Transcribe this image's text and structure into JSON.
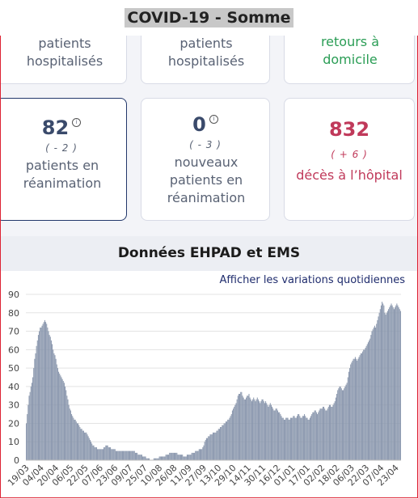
{
  "header": {
    "title": "COVID-19 - Somme"
  },
  "cards_top": [
    {
      "label": "patients hospitalisés"
    },
    {
      "label": "patients hospitalisés"
    },
    {
      "label": "retours à domicile"
    }
  ],
  "cards": [
    {
      "value": 82,
      "change": "( - 2 )",
      "label": "patients en réanimation"
    },
    {
      "value": 0,
      "change": "( - 3 )",
      "label": "nouveaux patients en réanimation"
    },
    {
      "value": 832,
      "change": "( + 6 )",
      "label": "décès à l’hôpital"
    }
  ],
  "section_title": "Données EHPAD et EMS",
  "link": "Afficher les variations quotidiennes",
  "chart_data": {
    "type": "bar",
    "color": "#8a97ad",
    "grid": true,
    "ylim": [
      0,
      90
    ],
    "yticks": [
      0,
      10,
      20,
      30,
      40,
      50,
      60,
      70,
      80,
      90
    ],
    "categories": [
      "19/03",
      null,
      null,
      null,
      null,
      null,
      null,
      null,
      null,
      null,
      null,
      null,
      null,
      null,
      null,
      null,
      "04/04",
      null,
      null,
      null,
      null,
      null,
      null,
      null,
      null,
      null,
      null,
      null,
      null,
      null,
      null,
      null,
      "20/04",
      null,
      null,
      null,
      null,
      null,
      null,
      null,
      null,
      null,
      null,
      null,
      null,
      null,
      null,
      null,
      "06/05",
      null,
      null,
      null,
      null,
      null,
      null,
      null,
      null,
      null,
      null,
      null,
      null,
      null,
      null,
      null,
      "22/05",
      null,
      null,
      null,
      null,
      null,
      null,
      null,
      null,
      null,
      null,
      null,
      null,
      null,
      null,
      null,
      "07/06",
      null,
      null,
      null,
      null,
      null,
      null,
      null,
      null,
      null,
      null,
      null,
      null,
      null,
      null,
      null,
      "23/06",
      null,
      null,
      null,
      null,
      null,
      null,
      null,
      null,
      null,
      null,
      null,
      null,
      null,
      null,
      null,
      "09/07",
      null,
      null,
      null,
      null,
      null,
      null,
      null,
      null,
      null,
      null,
      null,
      null,
      null,
      null,
      null,
      "25/07",
      null,
      null,
      null,
      null,
      null,
      null,
      null,
      null,
      null,
      null,
      null,
      null,
      null,
      null,
      null,
      "10/08",
      null,
      null,
      null,
      null,
      null,
      null,
      null,
      null,
      null,
      null,
      null,
      null,
      null,
      null,
      null,
      "26/08",
      null,
      null,
      null,
      null,
      null,
      null,
      null,
      null,
      null,
      null,
      null,
      null,
      null,
      null,
      null,
      "11/09",
      null,
      null,
      null,
      null,
      null,
      null,
      null,
      null,
      null,
      null,
      null,
      null,
      null,
      null,
      null,
      "27/09",
      null,
      null,
      null,
      null,
      null,
      null,
      null,
      null,
      null,
      null,
      null,
      null,
      null,
      null,
      null,
      "13/10",
      null,
      null,
      null,
      null,
      null,
      null,
      null,
      null,
      null,
      null,
      null,
      null,
      null,
      null,
      null,
      "29/10",
      null,
      null,
      null,
      null,
      null,
      null,
      null,
      null,
      null,
      null,
      null,
      null,
      null,
      null,
      null,
      "14/11",
      null,
      null,
      null,
      null,
      null,
      null,
      null,
      null,
      null,
      null,
      null,
      null,
      null,
      null,
      null,
      "30/11",
      null,
      null,
      null,
      null,
      null,
      null,
      null,
      null,
      null,
      null,
      null,
      null,
      null,
      null,
      null,
      "16/12",
      null,
      null,
      null,
      null,
      null,
      null,
      null,
      null,
      null,
      null,
      null,
      null,
      null,
      null,
      null,
      "01/01",
      null,
      null,
      null,
      null,
      null,
      null,
      null,
      null,
      null,
      null,
      null,
      null,
      null,
      null,
      null,
      "17/01",
      null,
      null,
      null,
      null,
      null,
      null,
      null,
      null,
      null,
      null,
      null,
      null,
      null,
      null,
      null,
      "02/02",
      null,
      null,
      null,
      null,
      null,
      null,
      null,
      null,
      null,
      null,
      null,
      null,
      null,
      null,
      null,
      "18/02",
      null,
      null,
      null,
      null,
      null,
      null,
      null,
      null,
      null,
      null,
      null,
      null,
      null,
      null,
      null,
      "06/03",
      null,
      null,
      null,
      null,
      null,
      null,
      null,
      null,
      null,
      null,
      null,
      null,
      null,
      null,
      null,
      "22/03",
      null,
      null,
      null,
      null,
      null,
      null,
      null,
      null,
      null,
      null,
      null,
      null,
      null,
      null,
      null,
      "07/04",
      null,
      null,
      null,
      null,
      null,
      null,
      null,
      null,
      null,
      null,
      null,
      null,
      null,
      null,
      null,
      "23/04",
      null,
      null,
      null,
      null,
      null
    ],
    "values": [
      20,
      25,
      30,
      35,
      37,
      40,
      42,
      45,
      50,
      55,
      58,
      62,
      65,
      68,
      70,
      72,
      72,
      73,
      74,
      75,
      76,
      75,
      74,
      72,
      70,
      68,
      67,
      65,
      63,
      60,
      58,
      57,
      55,
      52,
      50,
      48,
      47,
      46,
      45,
      44,
      43,
      42,
      40,
      38,
      35,
      33,
      30,
      28,
      27,
      25,
      24,
      23,
      22,
      22,
      21,
      20,
      20,
      19,
      18,
      17,
      17,
      16,
      16,
      15,
      15,
      15,
      14,
      13,
      12,
      11,
      10,
      9,
      8,
      8,
      7,
      7,
      7,
      6,
      6,
      6,
      6,
      6,
      6,
      6,
      7,
      7,
      8,
      8,
      8,
      7,
      7,
      7,
      6,
      6,
      6,
      6,
      6,
      5,
      5,
      5,
      5,
      5,
      5,
      5,
      5,
      5,
      5,
      5,
      5,
      5,
      5,
      5,
      5,
      5,
      5,
      5,
      5,
      5,
      4,
      4,
      4,
      3,
      3,
      3,
      3,
      3,
      2,
      2,
      2,
      2,
      1,
      1,
      1,
      1,
      0,
      0,
      0,
      0,
      1,
      1,
      1,
      1,
      1,
      1,
      2,
      2,
      2,
      2,
      2,
      2,
      2,
      3,
      3,
      3,
      3,
      4,
      4,
      4,
      4,
      4,
      4,
      4,
      4,
      4,
      3,
      3,
      3,
      3,
      3,
      3,
      2,
      2,
      2,
      2,
      3,
      3,
      3,
      3,
      3,
      4,
      4,
      4,
      4,
      5,
      5,
      5,
      5,
      6,
      6,
      6,
      6,
      7,
      8,
      10,
      11,
      12,
      12,
      13,
      13,
      14,
      14,
      14,
      15,
      15,
      15,
      15,
      16,
      16,
      17,
      17,
      18,
      18,
      19,
      19,
      20,
      20,
      21,
      21,
      22,
      22,
      23,
      24,
      25,
      27,
      28,
      29,
      30,
      31,
      33,
      35,
      36,
      36,
      37,
      37,
      35,
      34,
      33,
      33,
      34,
      35,
      35,
      36,
      34,
      33,
      32,
      33,
      34,
      33,
      32,
      33,
      34,
      33,
      32,
      31,
      32,
      33,
      33,
      32,
      31,
      32,
      31,
      30,
      29,
      30,
      31,
      30,
      29,
      28,
      27,
      27,
      28,
      28,
      27,
      26,
      26,
      25,
      24,
      23,
      23,
      22,
      22,
      23,
      23,
      23,
      22,
      22,
      23,
      23,
      23,
      24,
      24,
      23,
      23,
      24,
      25,
      25,
      24,
      23,
      23,
      24,
      24,
      25,
      24,
      23,
      23,
      22,
      22,
      23,
      24,
      25,
      26,
      26,
      27,
      27,
      26,
      25,
      26,
      27,
      28,
      28,
      28,
      29,
      29,
      28,
      27,
      27,
      28,
      29,
      30,
      30,
      29,
      29,
      30,
      31,
      32,
      34,
      36,
      38,
      39,
      40,
      40,
      39,
      38,
      38,
      39,
      40,
      41,
      42,
      45,
      48,
      50,
      52,
      53,
      54,
      55,
      55,
      56,
      55,
      54,
      55,
      56,
      57,
      58,
      58,
      59,
      60,
      60,
      61,
      62,
      63,
      64,
      65,
      66,
      68,
      70,
      71,
      72,
      73,
      72,
      74,
      76,
      78,
      80,
      82,
      84,
      86,
      85,
      84,
      80,
      79,
      80,
      81,
      82,
      83,
      84,
      85,
      84,
      83,
      82,
      83,
      84,
      85,
      84,
      83,
      82,
      81
    ]
  }
}
